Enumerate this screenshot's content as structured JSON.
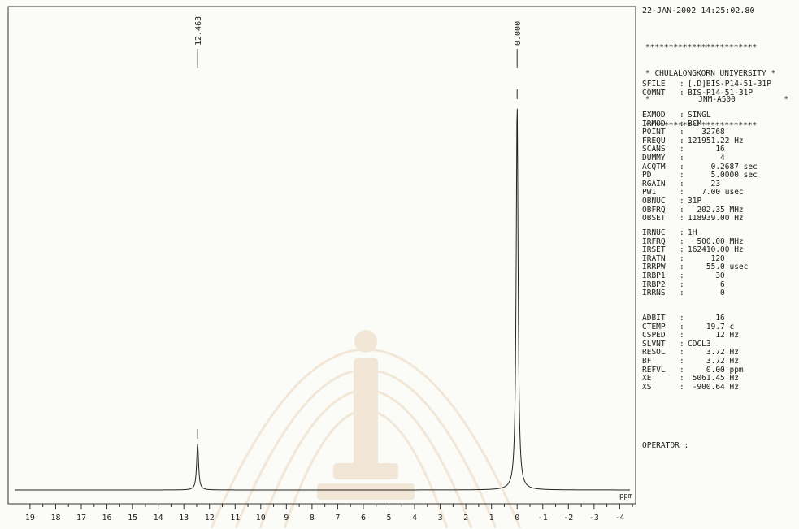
{
  "chart_data": {
    "type": "line",
    "title": "",
    "xlabel": "ppm",
    "ylabel": "",
    "x_reversed": true,
    "xlim": [
      19.6,
      -4.4
    ],
    "x_ticks": [
      "19",
      "18",
      "17",
      "16",
      "15",
      "14",
      "13",
      "12",
      "11",
      "10",
      "9",
      "8",
      "7",
      "6",
      "5",
      "4",
      "3",
      "2",
      "1",
      "0",
      "-1",
      "-2",
      "-3",
      "-4"
    ],
    "peaks": [
      {
        "ppm": 12.463,
        "label": "12.463",
        "relative_height": 0.12
      },
      {
        "ppm": 0.0,
        "label": "0.000",
        "relative_height": 1.0
      }
    ],
    "baseline_level": 0.0,
    "grid": false
  },
  "header": {
    "datetime": "22-JAN-2002 14:25:02.80",
    "banner_stars": "************************",
    "banner_line1": "* CHULALONGKORN UNIVERSITY *",
    "banner_line2_left": "*",
    "banner_line2_mid": "JNM-A500",
    "banner_line2_right": "*"
  },
  "file_info": [
    {
      "key": "SFILE",
      "value": "[.D]BIS-P14-51-31P"
    },
    {
      "key": "COMNT",
      "value": "BIS-P14-51-31P"
    }
  ],
  "acq_params": [
    {
      "key": "EXMOD",
      "value": "SINGL"
    },
    {
      "key": "IRMOD",
      "value": "BCM"
    },
    {
      "key": "POINT",
      "value": "   32768"
    },
    {
      "key": "FREQU",
      "value": "121951.22 Hz"
    },
    {
      "key": "SCANS",
      "value": "      16"
    },
    {
      "key": "DUMMY",
      "value": "       4"
    },
    {
      "key": "ACQTM",
      "value": "     0.2687 sec"
    },
    {
      "key": "PD",
      "value": "     5.0000 sec"
    },
    {
      "key": "RGAIN",
      "value": "     23"
    },
    {
      "key": "PW1",
      "value": "   7.00 usec"
    },
    {
      "key": "OBNUC",
      "value": "31P"
    },
    {
      "key": "OBFRQ",
      "value": "  202.35 MHz"
    },
    {
      "key": "OBSET",
      "value": "118939.00 Hz"
    }
  ],
  "irr_params": [
    {
      "key": "IRNUC",
      "value": "1H"
    },
    {
      "key": "IRFRQ",
      "value": "  500.00 MHz"
    },
    {
      "key": "IRSET",
      "value": "162410.00 Hz"
    },
    {
      "key": "IRATN",
      "value": "     120"
    },
    {
      "key": "IRRPW",
      "value": "    55.0 usec"
    },
    {
      "key": "IRBP1",
      "value": "      30"
    },
    {
      "key": "IRBP2",
      "value": "       6"
    },
    {
      "key": "IRRNS",
      "value": "       0"
    }
  ],
  "proc_params": [
    {
      "key": "ADBIT",
      "value": "      16"
    },
    {
      "key": "CTEMP",
      "value": "    19.7 c"
    },
    {
      "key": "CSPED",
      "value": "      12 Hz"
    },
    {
      "key": "SLVNT",
      "value": "CDCL3"
    },
    {
      "key": "RESOL",
      "value": "    3.72 Hz"
    },
    {
      "key": "BF",
      "value": "    3.72 Hz"
    },
    {
      "key": "REFVL",
      "value": "    0.00 ppm"
    },
    {
      "key": "XE",
      "value": " 5061.45 Hz"
    },
    {
      "key": "XS",
      "value": " -900.64 Hz"
    }
  ],
  "operator": {
    "key": "OPERATOR",
    "value": ""
  }
}
